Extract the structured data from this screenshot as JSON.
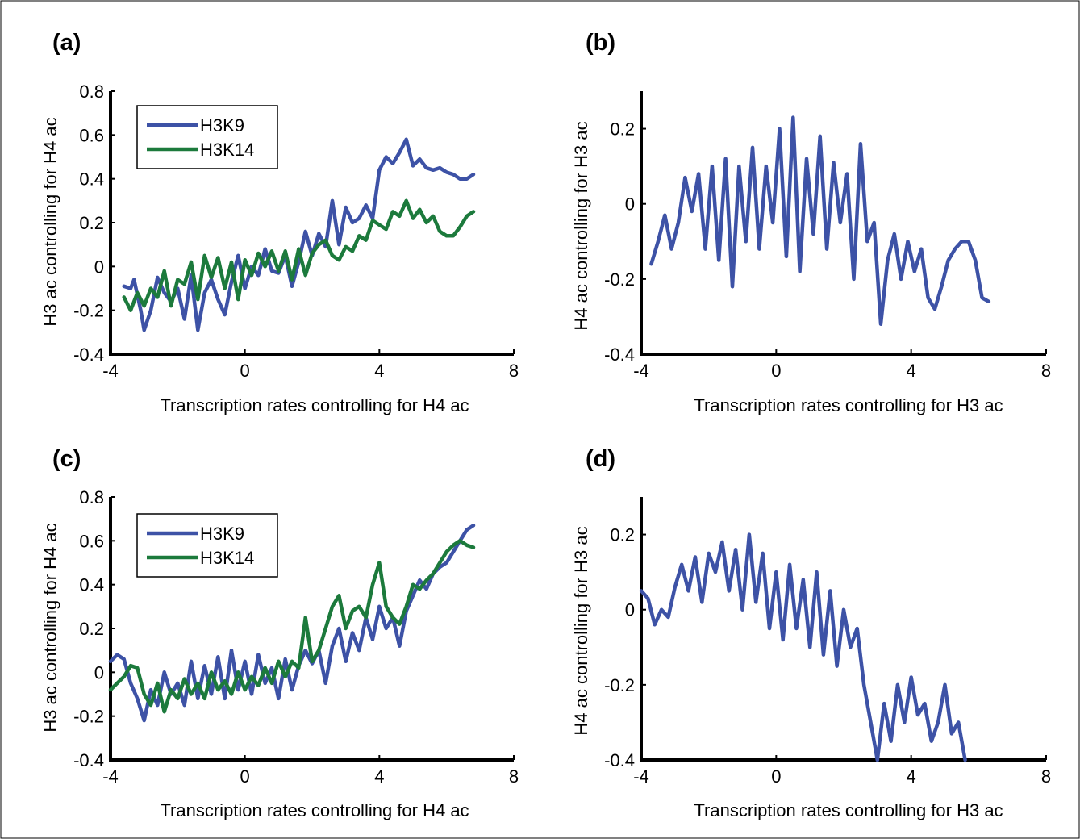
{
  "colors": {
    "blue": "#3d52a6",
    "green": "#1c7a3c",
    "axis": "#000000"
  },
  "chart_data": [
    {
      "panel": "(a)",
      "type": "line",
      "xlabel": "Transcription rates controlling for H4 ac",
      "ylabel": "H3 ac controlling for H4 ac",
      "xlim": [
        -4,
        8
      ],
      "ylim": [
        -0.4,
        0.8
      ],
      "xticks": [
        -4,
        0,
        4,
        8
      ],
      "yticks": [
        -0.4,
        -0.2,
        0,
        0.2,
        0.4,
        0.6,
        0.8
      ],
      "xtick_labels": [
        "-4",
        "0",
        "4",
        "8"
      ],
      "ytick_labels": [
        "-0.4",
        "-0.2",
        "0",
        "0.2",
        "0.4",
        "0.6",
        "0.8"
      ],
      "legend": {
        "position": "top-left",
        "entries": [
          "H3K9",
          "H3K14"
        ]
      },
      "series": [
        {
          "name": "H3K9",
          "color": "#3d52a6",
          "x": [
            -3.6,
            -3.4,
            -3.3,
            -3.1,
            -3.0,
            -2.8,
            -2.6,
            -2.4,
            -2.2,
            -2.0,
            -1.8,
            -1.6,
            -1.4,
            -1.2,
            -1.0,
            -0.8,
            -0.6,
            -0.4,
            -0.2,
            0.0,
            0.2,
            0.4,
            0.6,
            0.8,
            1.0,
            1.2,
            1.4,
            1.6,
            1.8,
            2.0,
            2.2,
            2.4,
            2.6,
            2.8,
            3.0,
            3.2,
            3.4,
            3.6,
            3.8,
            4.0,
            4.2,
            4.4,
            4.6,
            4.8,
            5.0,
            5.2,
            5.4,
            5.6,
            5.8,
            6.0,
            6.2,
            6.4,
            6.6,
            6.8
          ],
          "y": [
            -0.09,
            -0.1,
            -0.06,
            -0.2,
            -0.29,
            -0.2,
            -0.05,
            -0.12,
            -0.16,
            -0.1,
            -0.24,
            -0.04,
            -0.29,
            -0.12,
            -0.06,
            -0.15,
            -0.22,
            -0.07,
            0.05,
            -0.1,
            0.0,
            -0.04,
            0.08,
            -0.02,
            -0.03,
            0.05,
            -0.09,
            0.02,
            0.16,
            0.05,
            0.15,
            0.09,
            0.3,
            0.1,
            0.27,
            0.2,
            0.22,
            0.28,
            0.22,
            0.44,
            0.5,
            0.47,
            0.52,
            0.58,
            0.46,
            0.49,
            0.45,
            0.44,
            0.45,
            0.43,
            0.42,
            0.4,
            0.4,
            0.42
          ]
        },
        {
          "name": "H3K14",
          "color": "#1c7a3c",
          "x": [
            -3.6,
            -3.4,
            -3.2,
            -3.0,
            -2.8,
            -2.6,
            -2.4,
            -2.2,
            -2.0,
            -1.8,
            -1.6,
            -1.4,
            -1.2,
            -1.0,
            -0.8,
            -0.6,
            -0.4,
            -0.2,
            0.0,
            0.2,
            0.4,
            0.6,
            0.8,
            1.0,
            1.2,
            1.4,
            1.6,
            1.8,
            2.0,
            2.2,
            2.4,
            2.6,
            2.8,
            3.0,
            3.2,
            3.4,
            3.6,
            3.8,
            4.0,
            4.2,
            4.4,
            4.6,
            4.8,
            5.0,
            5.2,
            5.4,
            5.6,
            5.8,
            6.0,
            6.2,
            6.4,
            6.6,
            6.8
          ],
          "y": [
            -0.14,
            -0.2,
            -0.12,
            -0.18,
            -0.1,
            -0.14,
            -0.02,
            -0.18,
            -0.06,
            -0.08,
            0.02,
            -0.15,
            0.05,
            -0.05,
            0.04,
            -0.1,
            0.02,
            -0.15,
            0.03,
            -0.04,
            0.06,
            0.0,
            0.07,
            -0.02,
            0.07,
            -0.06,
            0.08,
            -0.04,
            0.06,
            0.1,
            0.12,
            0.05,
            0.03,
            0.09,
            0.07,
            0.14,
            0.12,
            0.21,
            0.19,
            0.17,
            0.25,
            0.23,
            0.3,
            0.22,
            0.26,
            0.2,
            0.23,
            0.16,
            0.14,
            0.14,
            0.18,
            0.23,
            0.25
          ]
        }
      ]
    },
    {
      "panel": "(b)",
      "type": "line",
      "xlabel": "Transcription rates controlling for H3 ac",
      "ylabel": "H4 ac controlling for H3 ac",
      "xlim": [
        -4,
        8
      ],
      "ylim": [
        -0.4,
        0.3
      ],
      "xticks": [
        -4,
        0,
        4,
        8
      ],
      "yticks": [
        -0.4,
        -0.2,
        0,
        0.2
      ],
      "xtick_labels": [
        "-4",
        "0",
        "4",
        "8"
      ],
      "ytick_labels": [
        "-0.4",
        "-0.2",
        "0",
        "0.2"
      ],
      "series": [
        {
          "name": "",
          "color": "#3d52a6",
          "x": [
            -3.7,
            -3.5,
            -3.3,
            -3.1,
            -2.9,
            -2.7,
            -2.5,
            -2.3,
            -2.1,
            -1.9,
            -1.7,
            -1.5,
            -1.3,
            -1.1,
            -0.9,
            -0.7,
            -0.5,
            -0.3,
            -0.1,
            0.1,
            0.3,
            0.5,
            0.7,
            0.9,
            1.1,
            1.3,
            1.5,
            1.7,
            1.9,
            2.1,
            2.3,
            2.5,
            2.7,
            2.9,
            3.1,
            3.3,
            3.5,
            3.7,
            3.9,
            4.1,
            4.3,
            4.5,
            4.7,
            4.9,
            5.1,
            5.3,
            5.5,
            5.7,
            5.9,
            6.1,
            6.3
          ],
          "y": [
            -0.16,
            -0.1,
            -0.03,
            -0.12,
            -0.05,
            0.07,
            -0.02,
            0.08,
            -0.12,
            0.1,
            -0.15,
            0.12,
            -0.22,
            0.1,
            -0.1,
            0.15,
            -0.12,
            0.1,
            -0.05,
            0.2,
            -0.14,
            0.23,
            -0.18,
            0.12,
            -0.08,
            0.18,
            -0.12,
            0.11,
            -0.05,
            0.08,
            -0.2,
            0.16,
            -0.1,
            -0.05,
            -0.32,
            -0.15,
            -0.08,
            -0.2,
            -0.1,
            -0.18,
            -0.12,
            -0.25,
            -0.28,
            -0.22,
            -0.15,
            -0.12,
            -0.1,
            -0.1,
            -0.15,
            -0.25,
            -0.26
          ]
        }
      ]
    },
    {
      "panel": "(c)",
      "type": "line",
      "xlabel": "Transcription rates controlling for H4 ac",
      "ylabel": "H3 ac controlling for H4 ac",
      "xlim": [
        -4,
        8
      ],
      "ylim": [
        -0.4,
        0.8
      ],
      "xticks": [
        -4,
        0,
        4,
        8
      ],
      "yticks": [
        -0.4,
        -0.2,
        0,
        0.2,
        0.4,
        0.6,
        0.8
      ],
      "xtick_labels": [
        "-4",
        "0",
        "4",
        "8"
      ],
      "ytick_labels": [
        "-0.4",
        "-0.2",
        "0",
        "0.2",
        "0.4",
        "0.6",
        "0.8"
      ],
      "legend": {
        "position": "top-left",
        "entries": [
          "H3K9",
          "H3K14"
        ]
      },
      "series": [
        {
          "name": "H3K9",
          "color": "#3d52a6",
          "x": [
            -4.0,
            -3.8,
            -3.6,
            -3.4,
            -3.2,
            -3.0,
            -2.8,
            -2.6,
            -2.4,
            -2.2,
            -2.0,
            -1.8,
            -1.6,
            -1.4,
            -1.2,
            -1.0,
            -0.8,
            -0.6,
            -0.4,
            -0.2,
            0.0,
            0.2,
            0.4,
            0.6,
            0.8,
            1.0,
            1.2,
            1.4,
            1.6,
            1.8,
            2.0,
            2.2,
            2.4,
            2.6,
            2.8,
            3.0,
            3.2,
            3.4,
            3.6,
            3.8,
            4.0,
            4.2,
            4.4,
            4.6,
            4.8,
            5.0,
            5.2,
            5.4,
            5.6,
            5.8,
            6.0,
            6.2,
            6.4,
            6.6,
            6.8
          ],
          "y": [
            0.05,
            0.08,
            0.06,
            -0.05,
            -0.12,
            -0.22,
            -0.08,
            -0.15,
            0.0,
            -0.1,
            -0.05,
            -0.15,
            0.05,
            -0.12,
            0.03,
            -0.1,
            0.07,
            -0.12,
            0.1,
            -0.08,
            0.05,
            -0.1,
            0.08,
            -0.05,
            0.02,
            -0.12,
            0.06,
            -0.08,
            0.03,
            0.1,
            0.04,
            0.1,
            -0.05,
            0.12,
            0.2,
            0.05,
            0.18,
            0.1,
            0.25,
            0.15,
            0.3,
            0.2,
            0.25,
            0.12,
            0.28,
            0.35,
            0.42,
            0.38,
            0.45,
            0.48,
            0.5,
            0.55,
            0.6,
            0.65,
            0.67
          ]
        },
        {
          "name": "H3K14",
          "color": "#1c7a3c",
          "x": [
            -4.0,
            -3.8,
            -3.6,
            -3.4,
            -3.2,
            -3.0,
            -2.8,
            -2.6,
            -2.4,
            -2.2,
            -2.0,
            -1.8,
            -1.6,
            -1.4,
            -1.2,
            -1.0,
            -0.8,
            -0.6,
            -0.4,
            -0.2,
            0.0,
            0.2,
            0.4,
            0.6,
            0.8,
            1.0,
            1.2,
            1.4,
            1.6,
            1.8,
            2.0,
            2.2,
            2.4,
            2.6,
            2.8,
            3.0,
            3.2,
            3.4,
            3.6,
            3.8,
            4.0,
            4.2,
            4.4,
            4.6,
            4.8,
            5.0,
            5.2,
            5.4,
            5.6,
            5.8,
            6.0,
            6.2,
            6.4,
            6.6,
            6.8
          ],
          "y": [
            -0.08,
            -0.05,
            -0.02,
            0.03,
            0.02,
            -0.1,
            -0.15,
            -0.05,
            -0.18,
            -0.08,
            -0.12,
            -0.03,
            -0.1,
            -0.05,
            -0.12,
            0.0,
            -0.08,
            -0.04,
            -0.1,
            0.0,
            -0.08,
            -0.02,
            -0.06,
            0.02,
            -0.05,
            0.05,
            -0.02,
            0.05,
            0.02,
            0.25,
            0.05,
            0.1,
            0.2,
            0.3,
            0.35,
            0.2,
            0.28,
            0.3,
            0.25,
            0.4,
            0.5,
            0.3,
            0.25,
            0.22,
            0.3,
            0.4,
            0.38,
            0.42,
            0.45,
            0.5,
            0.55,
            0.58,
            0.6,
            0.58,
            0.57
          ]
        }
      ]
    },
    {
      "panel": "(d)",
      "type": "line",
      "xlabel": "Transcription rates controlling for H3 ac",
      "ylabel": "H4 ac controlling for H3 ac",
      "xlim": [
        -4,
        8
      ],
      "ylim": [
        -0.4,
        0.3
      ],
      "xticks": [
        -4,
        0,
        4,
        8
      ],
      "yticks": [
        -0.4,
        -0.2,
        0,
        0.2
      ],
      "xtick_labels": [
        "-4",
        "0",
        "4",
        "8"
      ],
      "ytick_labels": [
        "-0.4",
        "-0.2",
        "0",
        "0.2"
      ],
      "series": [
        {
          "name": "",
          "color": "#3d52a6",
          "x": [
            -4.0,
            -3.8,
            -3.6,
            -3.4,
            -3.2,
            -3.0,
            -2.8,
            -2.6,
            -2.4,
            -2.2,
            -2.0,
            -1.8,
            -1.6,
            -1.4,
            -1.2,
            -1.0,
            -0.8,
            -0.6,
            -0.4,
            -0.2,
            0.0,
            0.2,
            0.4,
            0.6,
            0.8,
            1.0,
            1.2,
            1.4,
            1.6,
            1.8,
            2.0,
            2.2,
            2.4,
            2.6,
            2.8,
            3.0,
            3.2,
            3.4,
            3.6,
            3.8,
            4.0,
            4.2,
            4.4,
            4.6,
            4.8,
            5.0,
            5.2,
            5.4,
            5.6
          ],
          "y": [
            0.05,
            0.03,
            -0.04,
            0.0,
            -0.02,
            0.06,
            0.12,
            0.05,
            0.14,
            0.02,
            0.15,
            0.1,
            0.18,
            0.05,
            0.16,
            0.0,
            0.2,
            0.02,
            0.15,
            -0.05,
            0.1,
            -0.08,
            0.12,
            -0.05,
            0.08,
            -0.1,
            0.1,
            -0.12,
            0.05,
            -0.15,
            0.0,
            -0.1,
            -0.05,
            -0.2,
            -0.3,
            -0.4,
            -0.25,
            -0.35,
            -0.2,
            -0.3,
            -0.18,
            -0.28,
            -0.25,
            -0.35,
            -0.3,
            -0.2,
            -0.33,
            -0.3,
            -0.4
          ]
        }
      ]
    }
  ]
}
